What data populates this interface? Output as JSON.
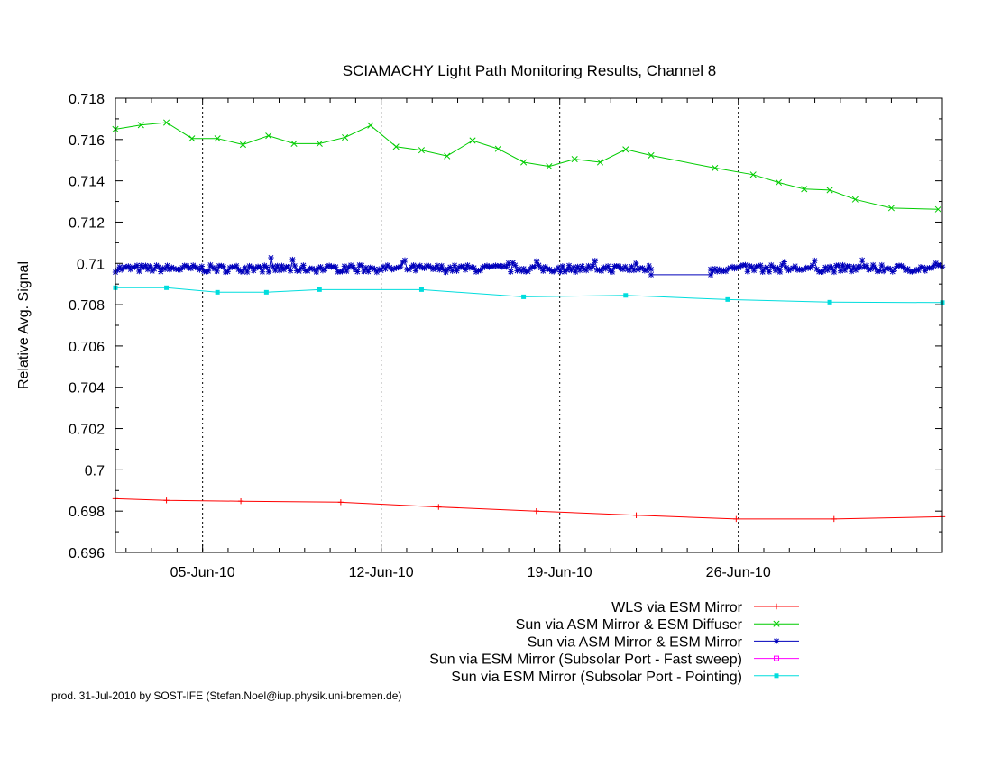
{
  "chart_data": {
    "type": "line",
    "title": "SCIAMACHY Light Path Monitoring Results, Channel 8",
    "xlabel": "",
    "ylabel": "Relative Avg. Signal",
    "x_axis": {
      "type": "date",
      "range": [
        "2010-06-01T14:00",
        "2010-07-04T00:00"
      ],
      "tick_labels": [
        "05-Jun-10",
        "12-Jun-10",
        "19-Jun-10",
        "26-Jun-10"
      ],
      "tick_dates": [
        "2010-06-05",
        "2010-06-12",
        "2010-06-19",
        "2010-06-26"
      ]
    },
    "y_axis": {
      "range": [
        0.696,
        0.718
      ],
      "tick_labels": [
        "0.696",
        "0.698",
        "0.7",
        "0.702",
        "0.704",
        "0.706",
        "0.708",
        "0.71",
        "0.712",
        "0.714",
        "0.716",
        "0.718"
      ]
    },
    "grid": "vertical-at-date-ticks",
    "legend_position": "bottom-right",
    "series": [
      {
        "name": "WLS via ESM Mirror",
        "color": "#ff0000",
        "marker": "plus",
        "points": [
          [
            "2010-06-01T14:00",
            0.6986
          ],
          [
            "2010-06-03T14:00",
            0.69852
          ],
          [
            "2010-06-06T12:00",
            0.69848
          ],
          [
            "2010-06-10T10:00",
            0.69843
          ],
          [
            "2010-06-14T06:00",
            0.6982
          ],
          [
            "2010-06-18T02:00",
            0.698
          ],
          [
            "2010-06-22T00:00",
            0.6978
          ],
          [
            "2010-06-25T22:00",
            0.69762
          ],
          [
            "2010-06-29T18:00",
            0.69762
          ],
          [
            "2010-07-04T00:00",
            0.69773
          ]
        ]
      },
      {
        "name": "Sun via ASM Mirror & ESM Diffuser",
        "color": "#00cc00",
        "marker": "cross",
        "points": [
          [
            "2010-06-01T14:00",
            0.7165
          ],
          [
            "2010-06-02T14:00",
            0.7167
          ],
          [
            "2010-06-03T14:00",
            0.71682
          ],
          [
            "2010-06-04T14:00",
            0.71605
          ],
          [
            "2010-06-05T14:00",
            0.71605
          ],
          [
            "2010-06-06T14:00",
            0.71575
          ],
          [
            "2010-06-07T14:00",
            0.71618
          ],
          [
            "2010-06-08T14:00",
            0.7158
          ],
          [
            "2010-06-09T14:00",
            0.7158
          ],
          [
            "2010-06-10T14:00",
            0.7161
          ],
          [
            "2010-06-11T14:00",
            0.71668
          ],
          [
            "2010-06-12T14:00",
            0.71565
          ],
          [
            "2010-06-13T14:00",
            0.71548
          ],
          [
            "2010-06-14T14:00",
            0.7152
          ],
          [
            "2010-06-15T14:00",
            0.71595
          ],
          [
            "2010-06-16T14:00",
            0.71555
          ],
          [
            "2010-06-17T14:00",
            0.7149
          ],
          [
            "2010-06-18T14:00",
            0.7147
          ],
          [
            "2010-06-19T14:00",
            0.71505
          ],
          [
            "2010-06-20T14:00",
            0.7149
          ],
          [
            "2010-06-21T14:00",
            0.71552
          ],
          [
            "2010-06-22T14:00",
            0.71523
          ],
          [
            "2010-06-25T02:00",
            0.71462
          ],
          [
            "2010-06-26T14:00",
            0.7143
          ],
          [
            "2010-06-27T14:00",
            0.71392
          ],
          [
            "2010-06-28T14:00",
            0.7136
          ],
          [
            "2010-06-29T14:00",
            0.71355
          ],
          [
            "2010-06-30T14:00",
            0.7131
          ],
          [
            "2010-07-02T00:00",
            0.71268
          ],
          [
            "2010-07-03T20:00",
            0.71262
          ]
        ]
      },
      {
        "name": "Sun via ASM Mirror & ESM Mirror",
        "color": "#0000bb",
        "marker": "star",
        "segments": [
          {
            "start": "2010-06-01T14:00",
            "end": "2010-06-22T14:00",
            "mean": 0.70975,
            "amp": 0.00022
          },
          {
            "start": "2010-06-22T14:00",
            "end": "2010-06-24T22:00",
            "mean": 0.70945,
            "amp": 0.0
          },
          {
            "start": "2010-06-24T22:00",
            "end": "2010-07-04T00:00",
            "mean": 0.70975,
            "amp": 0.00022
          }
        ]
      },
      {
        "name": "Sun via ESM Mirror (Subsolar Port - Fast sweep)",
        "color": "#ff00ff",
        "marker": "square-open",
        "points": []
      },
      {
        "name": "Sun via ESM Mirror (Subsolar Port - Pointing)",
        "color": "#00dddd",
        "marker": "square",
        "points": [
          [
            "2010-06-01T14:00",
            0.70882
          ],
          [
            "2010-06-03T14:00",
            0.70882
          ],
          [
            "2010-06-05T14:00",
            0.7086
          ],
          [
            "2010-06-07T12:00",
            0.7086
          ],
          [
            "2010-06-09T14:00",
            0.70873
          ],
          [
            "2010-06-13T14:00",
            0.70873
          ],
          [
            "2010-06-17T14:00",
            0.70838
          ],
          [
            "2010-06-21T14:00",
            0.70845
          ],
          [
            "2010-06-25T14:00",
            0.70825
          ],
          [
            "2010-06-29T14:00",
            0.70812
          ],
          [
            "2010-07-04T00:00",
            0.7081
          ]
        ]
      }
    ]
  },
  "credit": "prod. 31-Jul-2010 by SOST-IFE (Stefan.Noel@iup.physik.uni-bremen.de)"
}
